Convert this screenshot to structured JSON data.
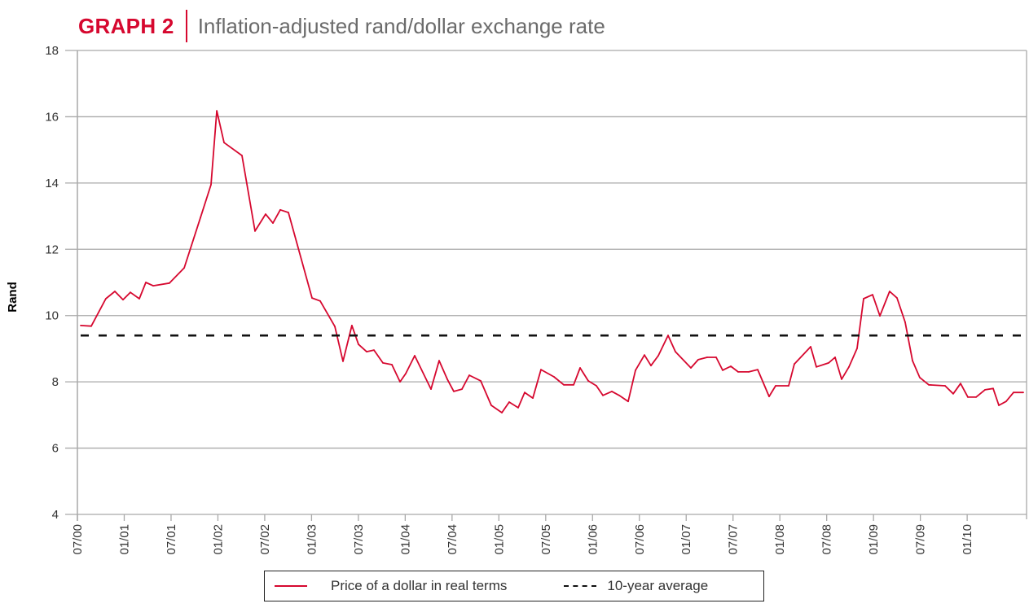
{
  "header": {
    "tag": "GRAPH 2",
    "title": "Inflation-adjusted rand/dollar exchange rate"
  },
  "colors": {
    "accent": "#d6082f",
    "title_gray": "#6b6b6b",
    "grid": "#a9a9a9",
    "average_line": "#111111"
  },
  "chart_data": {
    "type": "line",
    "title": "Inflation-adjusted rand/dollar exchange rate",
    "xlabel": "",
    "ylabel": "Rand",
    "ylim": [
      4,
      18
    ],
    "yticks": [
      4,
      6,
      8,
      10,
      12,
      14,
      16,
      18
    ],
    "xlim": [
      2000.5,
      2010.634
    ],
    "x_unit": "fractional year",
    "xticks": [
      {
        "x": 2000.5,
        "label": "07/00"
      },
      {
        "x": 2001.0,
        "label": "01/01"
      },
      {
        "x": 2001.5,
        "label": "07/01"
      },
      {
        "x": 2002.0,
        "label": "01/02"
      },
      {
        "x": 2002.5,
        "label": "07/02"
      },
      {
        "x": 2003.0,
        "label": "01/03"
      },
      {
        "x": 2003.5,
        "label": "07/03"
      },
      {
        "x": 2004.0,
        "label": "01/04"
      },
      {
        "x": 2004.5,
        "label": "07/04"
      },
      {
        "x": 2005.0,
        "label": "01/05"
      },
      {
        "x": 2005.5,
        "label": "07/05"
      },
      {
        "x": 2006.0,
        "label": "01/06"
      },
      {
        "x": 2006.5,
        "label": "07/06"
      },
      {
        "x": 2007.0,
        "label": "01/07"
      },
      {
        "x": 2007.5,
        "label": "07/07"
      },
      {
        "x": 2008.0,
        "label": "01/08"
      },
      {
        "x": 2008.5,
        "label": "07/08"
      },
      {
        "x": 2009.0,
        "label": "01/09"
      },
      {
        "x": 2009.5,
        "label": "07/09"
      },
      {
        "x": 2010.0,
        "label": "01/10"
      }
    ],
    "grid": "horizontal",
    "legend_position": "bottom-center",
    "series": [
      {
        "name": "Price of a dollar in real terms",
        "color": "#d6082f",
        "style": "solid",
        "x": [
          2000.535,
          2000.648,
          2000.804,
          2000.9,
          2000.987,
          2001.065,
          2001.161,
          2001.231,
          2001.309,
          2001.483,
          2001.64,
          2001.814,
          2001.927,
          2001.988,
          2002.066,
          2002.257,
          2002.396,
          2002.509,
          2002.588,
          2002.666,
          2002.753,
          2003.005,
          2003.092,
          2003.249,
          2003.336,
          2003.431,
          2003.501,
          2003.588,
          2003.666,
          2003.762,
          2003.858,
          2003.945,
          2004.006,
          2004.101,
          2004.275,
          2004.362,
          2004.449,
          2004.519,
          2004.606,
          2004.684,
          2004.806,
          2004.919,
          2005.032,
          2005.11,
          2005.206,
          2005.276,
          2005.363,
          2005.45,
          2005.589,
          2005.693,
          2005.798,
          2005.867,
          2005.954,
          2006.041,
          2006.111,
          2006.206,
          2006.285,
          2006.38,
          2006.459,
          2006.554,
          2006.624,
          2006.702,
          2006.807,
          2006.885,
          2007.05,
          2007.128,
          2007.224,
          2007.32,
          2007.389,
          2007.476,
          2007.555,
          2007.668,
          2007.763,
          2007.885,
          2007.955,
          2008.094,
          2008.155,
          2008.329,
          2008.39,
          2008.52,
          2008.59,
          2008.659,
          2008.738,
          2008.825,
          2008.894,
          2008.99,
          2009.068,
          2009.172,
          2009.251,
          2009.338,
          2009.416,
          2009.494,
          2009.59,
          2009.764,
          2009.851,
          2009.929,
          2010.008,
          2010.095,
          2010.19,
          2010.277,
          2010.338,
          2010.416,
          2010.495,
          2010.599
        ],
        "values": [
          9.7,
          9.68,
          10.51,
          10.73,
          10.48,
          10.7,
          10.51,
          11.0,
          10.9,
          10.98,
          11.44,
          12.96,
          13.95,
          16.18,
          15.22,
          14.83,
          12.55,
          13.06,
          12.79,
          13.19,
          13.11,
          10.53,
          10.44,
          9.67,
          8.62,
          9.7,
          9.13,
          8.91,
          8.96,
          8.57,
          8.52,
          8.0,
          8.25,
          8.79,
          7.78,
          8.64,
          8.08,
          7.71,
          7.78,
          8.2,
          8.03,
          7.29,
          7.07,
          7.39,
          7.22,
          7.68,
          7.51,
          8.37,
          8.15,
          7.91,
          7.91,
          8.42,
          8.03,
          7.88,
          7.59,
          7.71,
          7.59,
          7.41,
          8.35,
          8.81,
          8.49,
          8.79,
          9.4,
          8.91,
          8.42,
          8.67,
          8.74,
          8.74,
          8.35,
          8.47,
          8.3,
          8.3,
          8.37,
          7.56,
          7.88,
          7.88,
          8.54,
          9.06,
          8.45,
          8.57,
          8.74,
          8.08,
          8.45,
          9.01,
          10.51,
          10.63,
          9.99,
          10.73,
          10.53,
          9.8,
          8.64,
          8.13,
          7.91,
          7.88,
          7.64,
          7.95,
          7.54,
          7.54,
          7.76,
          7.8,
          7.29,
          7.41,
          7.68,
          7.68
        ]
      },
      {
        "name": "10-year average",
        "color": "#111111",
        "style": "dashed",
        "constant": 9.4
      }
    ]
  },
  "legend": {
    "items": [
      {
        "label": "Price of a dollar in real terms"
      },
      {
        "label": "10-year average"
      }
    ]
  }
}
